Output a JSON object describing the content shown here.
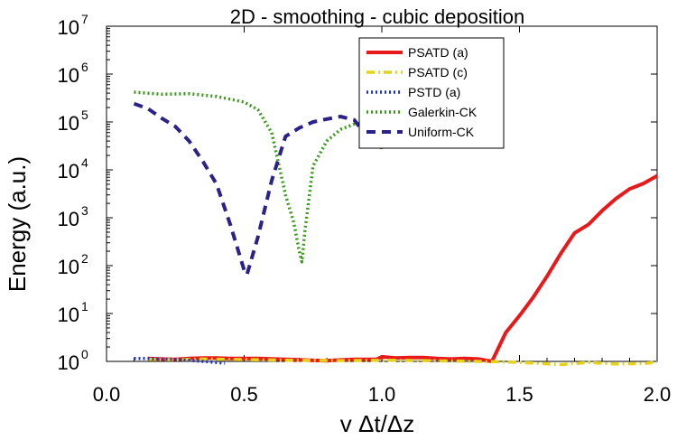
{
  "chart_data": {
    "type": "line",
    "title": "2D - smoothing - cubic deposition",
    "xlabel": "v Δt/Δz",
    "ylabel": "Energy (a.u.)",
    "xlim": [
      0.0,
      2.0
    ],
    "ylim_log10": [
      0,
      7
    ],
    "y_scale": "log",
    "x_ticks": [
      0.0,
      0.5,
      1.0,
      1.5,
      2.0
    ],
    "x_tick_labels": [
      "0.0",
      "0.5",
      "1.0",
      "1.5",
      "2.0"
    ],
    "y_ticks_exp": [
      0,
      1,
      2,
      3,
      4,
      5,
      6,
      7
    ],
    "y_tick_base": "10",
    "y_tick_exp_labels": [
      "0",
      "1",
      "2",
      "3",
      "4",
      "5",
      "6",
      "7"
    ],
    "legend_position": "top-right",
    "series": [
      {
        "name": "PSATD (a)",
        "color": "#e8191a",
        "style": "solid",
        "x": [
          0.15,
          0.2,
          0.25,
          0.3,
          0.35,
          0.4,
          0.45,
          0.5,
          0.55,
          0.6,
          0.65,
          0.7,
          0.75,
          0.8,
          0.85,
          0.9,
          0.95,
          0.98,
          1.0,
          1.05,
          1.1,
          1.15,
          1.2,
          1.25,
          1.3,
          1.35,
          1.4,
          1.45,
          1.5,
          1.55,
          1.6,
          1.65,
          1.7,
          1.75,
          1.8,
          1.85,
          1.9,
          1.95,
          2.0
        ],
        "y": [
          1.15,
          1.12,
          1.1,
          1.15,
          1.18,
          1.18,
          1.15,
          1.15,
          1.15,
          1.13,
          1.1,
          1.08,
          1.05,
          1.03,
          1.07,
          1.1,
          1.1,
          1.1,
          1.25,
          1.18,
          1.2,
          1.2,
          1.15,
          1.12,
          1.15,
          1.12,
          1.0,
          4,
          9,
          22,
          60,
          180,
          480,
          720,
          1400,
          2500,
          4000,
          5200,
          7500
        ]
      },
      {
        "name": "PSATD (c)",
        "color": "#e6d21a",
        "style": "dashdot",
        "x": [
          0.15,
          0.25,
          0.35,
          0.45,
          0.55,
          0.65,
          0.75,
          0.85,
          0.95,
          1.05,
          1.15,
          1.25,
          1.35,
          1.45,
          1.55,
          1.65,
          1.75,
          1.85,
          1.95,
          2.0
        ],
        "y": [
          1.1,
          1.08,
          1.12,
          1.1,
          1.08,
          1.06,
          1.05,
          1.04,
          1.05,
          1.06,
          1.04,
          1.02,
          1.0,
          0.98,
          0.92,
          0.86,
          0.95,
          0.88,
          0.9,
          0.97
        ]
      },
      {
        "name": "PSTD (a)",
        "color": "#1a33d1",
        "style": "dotted",
        "x": [
          0.1,
          0.15,
          0.2,
          0.25,
          0.3,
          0.35,
          0.4,
          0.43
        ],
        "y": [
          1.15,
          1.15,
          1.12,
          1.1,
          1.06,
          1.0,
          0.95,
          0.92
        ]
      },
      {
        "name": "Galerkin-CK",
        "color": "#3a9a1a",
        "style": "dotted",
        "x": [
          0.1,
          0.2,
          0.3,
          0.4,
          0.5,
          0.55,
          0.6,
          0.65,
          0.68,
          0.7,
          0.71,
          0.72,
          0.75,
          0.8,
          0.85,
          0.9,
          0.95,
          0.97,
          0.99,
          1.0
        ],
        "y": [
          420000,
          380000,
          390000,
          340000,
          260000,
          180000,
          60000,
          3000,
          800,
          200,
          120,
          500,
          12000,
          40000,
          70000,
          90000,
          100000,
          110000,
          60000,
          25000
        ]
      },
      {
        "name": "Uniform-CK",
        "color": "#2a2288",
        "style": "dashed",
        "x": [
          0.1,
          0.15,
          0.2,
          0.25,
          0.3,
          0.35,
          0.4,
          0.45,
          0.5,
          0.51,
          0.55,
          0.6,
          0.65,
          0.7,
          0.75,
          0.8,
          0.85,
          0.9,
          0.95
        ],
        "y": [
          240000,
          190000,
          120000,
          80000,
          40000,
          15000,
          5000,
          700,
          80,
          65,
          400,
          6000,
          50000,
          75000,
          100000,
          115000,
          130000,
          110000,
          45000
        ]
      }
    ]
  }
}
